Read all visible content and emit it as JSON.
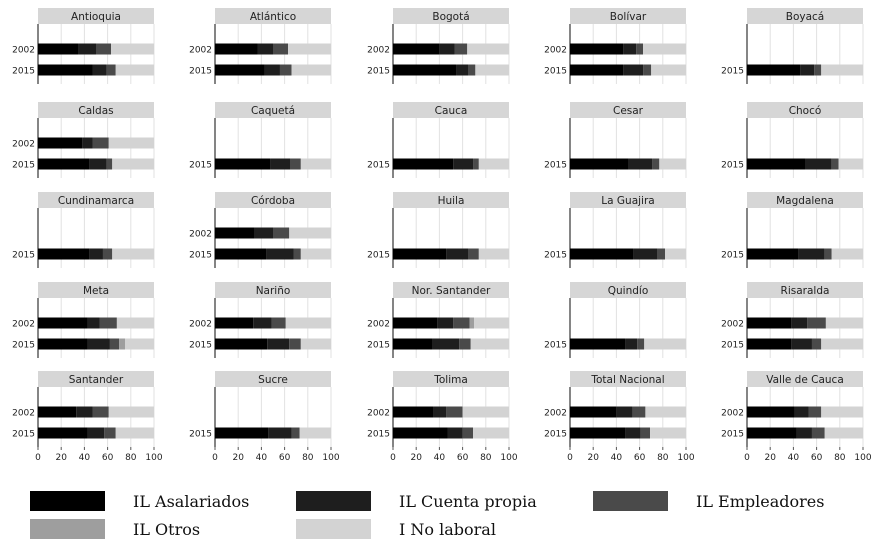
{
  "chart_data": {
    "type": "bar",
    "orientation": "horizontal",
    "stacked": true,
    "xlim": [
      0,
      100
    ],
    "xticks": [
      "0",
      "20",
      "40",
      "60",
      "80",
      "100"
    ],
    "grid": true,
    "legend_position": "bottom",
    "series": [
      {
        "name": "IL Asalariados",
        "color": "#000000"
      },
      {
        "name": "IL Cuenta propia",
        "color": "#1e1e1e"
      },
      {
        "name": "IL Empleadores",
        "color": "#4a4a4a"
      },
      {
        "name": "IL Otros",
        "color": "#9e9e9e"
      },
      {
        "name": "I No laboral",
        "color": "#d3d3d3"
      }
    ],
    "panels": [
      {
        "title": "Antioquia",
        "bars": [
          {
            "year": "2002",
            "values": [
              35,
              15,
              13,
              0,
              37
            ]
          },
          {
            "year": "2015",
            "values": [
              47,
              12,
              8,
              0,
              33
            ]
          }
        ]
      },
      {
        "title": "Atlántico",
        "bars": [
          {
            "year": "2002",
            "values": [
              37,
              13,
              13,
              0,
              37
            ]
          },
          {
            "year": "2015",
            "values": [
              43,
              13,
              10,
              0,
              34
            ]
          }
        ]
      },
      {
        "title": "Bogotá",
        "bars": [
          {
            "year": "2002",
            "values": [
              40,
              13,
              11,
              0,
              36
            ]
          },
          {
            "year": "2015",
            "values": [
              55,
              10,
              6,
              0,
              29
            ]
          }
        ]
      },
      {
        "title": "Bolívar",
        "bars": [
          {
            "year": "2002",
            "values": [
              46,
              11,
              6,
              0,
              37
            ]
          },
          {
            "year": "2015",
            "values": [
              46,
              17,
              7,
              0,
              30
            ]
          }
        ]
      },
      {
        "title": "Boyacá",
        "bars": [
          {
            "year": "2015",
            "values": [
              46,
              12,
              6,
              0,
              36
            ]
          }
        ]
      },
      {
        "title": "Caldas",
        "bars": [
          {
            "year": "2002",
            "values": [
              38,
              9,
              14,
              0,
              39
            ]
          },
          {
            "year": "2015",
            "values": [
              44,
              15,
              5,
              0,
              36
            ]
          }
        ]
      },
      {
        "title": "Caquetá",
        "bars": [
          {
            "year": "2015",
            "values": [
              48,
              17,
              9,
              0,
              26
            ]
          }
        ]
      },
      {
        "title": "Cauca",
        "bars": [
          {
            "year": "2015",
            "values": [
              52,
              17,
              5,
              0,
              26
            ]
          }
        ]
      },
      {
        "title": "Cesar",
        "bars": [
          {
            "year": "2015",
            "values": [
              50,
              21,
              6,
              0,
              23
            ]
          }
        ]
      },
      {
        "title": "Chocó",
        "bars": [
          {
            "year": "2015",
            "values": [
              50,
              23,
              6,
              0,
              21
            ]
          }
        ]
      },
      {
        "title": "Cundinamarca",
        "bars": [
          {
            "year": "2015",
            "values": [
              44,
              12,
              8,
              0,
              36
            ]
          }
        ]
      },
      {
        "title": "Córdoba",
        "bars": [
          {
            "year": "2002",
            "values": [
              34,
              16,
              14,
              0,
              36
            ]
          },
          {
            "year": "2015",
            "values": [
              44,
              24,
              6,
              0,
              26
            ]
          }
        ]
      },
      {
        "title": "Huila",
        "bars": [
          {
            "year": "2015",
            "values": [
              46,
              19,
              9,
              0,
              26
            ]
          }
        ]
      },
      {
        "title": "La Guajira",
        "bars": [
          {
            "year": "2015",
            "values": [
              55,
              20,
              7,
              0,
              18
            ]
          }
        ]
      },
      {
        "title": "Magdalena",
        "bars": [
          {
            "year": "2015",
            "values": [
              44,
              23,
              6,
              0,
              27
            ]
          }
        ]
      },
      {
        "title": "Meta",
        "bars": [
          {
            "year": "2002",
            "values": [
              43,
              10,
              15,
              0,
              32
            ]
          },
          {
            "year": "2015",
            "values": [
              43,
              19,
              8,
              5,
              25
            ]
          }
        ]
      },
      {
        "title": "Nariño",
        "bars": [
          {
            "year": "2002",
            "values": [
              33,
              16,
              12,
              0,
              39
            ]
          },
          {
            "year": "2015",
            "values": [
              45,
              19,
              10,
              0,
              26
            ]
          }
        ]
      },
      {
        "title": "Nor. Santander",
        "bars": [
          {
            "year": "2002",
            "values": [
              38,
              14,
              14,
              4,
              30
            ]
          },
          {
            "year": "2015",
            "values": [
              34,
              23,
              10,
              0,
              33
            ]
          }
        ]
      },
      {
        "title": "Quindío",
        "bars": [
          {
            "year": "2015",
            "values": [
              48,
              10,
              6,
              0,
              36
            ]
          }
        ]
      },
      {
        "title": "Risaralda",
        "bars": [
          {
            "year": "2002",
            "values": [
              38,
              14,
              16,
              0,
              32
            ]
          },
          {
            "year": "2015",
            "values": [
              38,
              18,
              8,
              0,
              36
            ]
          }
        ]
      },
      {
        "title": "Santander",
        "bars": [
          {
            "year": "2002",
            "values": [
              33,
              14,
              14,
              0,
              39
            ]
          },
          {
            "year": "2015",
            "values": [
              43,
              14,
              10,
              0,
              33
            ]
          }
        ]
      },
      {
        "title": "Sucre",
        "bars": [
          {
            "year": "2015",
            "values": [
              46,
              20,
              7,
              0,
              27
            ]
          }
        ]
      },
      {
        "title": "Tolima",
        "bars": [
          {
            "year": "2002",
            "values": [
              35,
              11,
              14,
              0,
              40
            ]
          },
          {
            "year": "2015",
            "values": [
              47,
              13,
              9,
              0,
              31
            ]
          }
        ]
      },
      {
        "title": "Total Nacional",
        "bars": [
          {
            "year": "2002",
            "values": [
              40,
              14,
              11,
              0,
              35
            ]
          },
          {
            "year": "2015",
            "values": [
              48,
              13,
              8,
              0,
              31
            ]
          }
        ]
      },
      {
        "title": "Valle de Cauca",
        "bars": [
          {
            "year": "2002",
            "values": [
              41,
              12,
              11,
              0,
              36
            ]
          },
          {
            "year": "2015",
            "values": [
              43,
              13,
              11,
              0,
              33
            ]
          }
        ]
      }
    ]
  }
}
